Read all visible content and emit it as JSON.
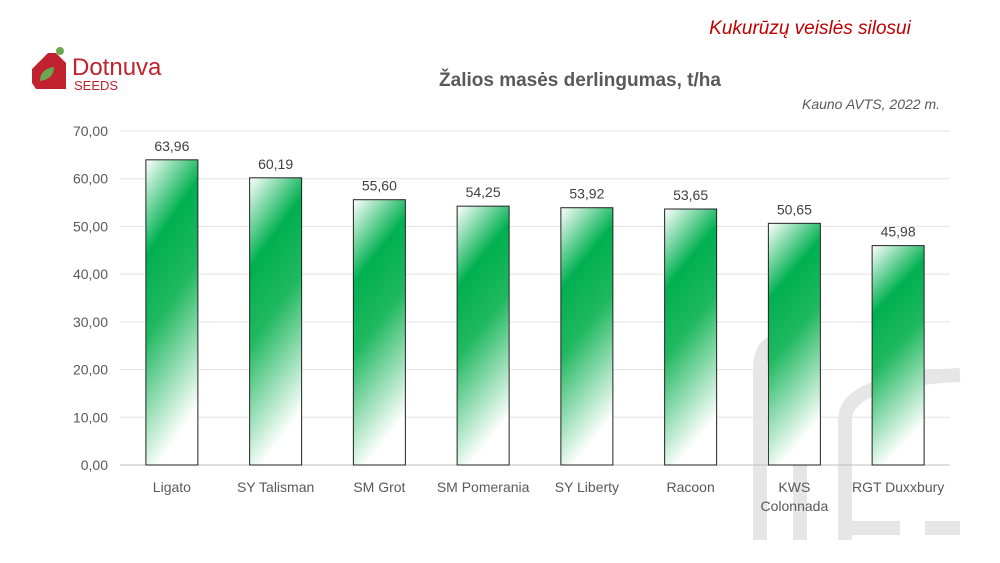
{
  "header": {
    "caption": "Kukurūzų veislės silosui",
    "logo_text": "Dotnuva",
    "logo_sub": "SEEDS"
  },
  "colors": {
    "bar": "#00b050",
    "caption": "#c00000",
    "logo": "#c0222f"
  },
  "chart_data": {
    "type": "bar",
    "title": "Žalios masės derlingumas, t/ha",
    "subtitle": "Kauno AVTS, 2022 m.",
    "categories": [
      "Ligato",
      "SY Talisman",
      "SM Grot",
      "SM Pomerania",
      "SY Liberty",
      "Racoon",
      "KWS Colonnada",
      "RGT Duxxbury"
    ],
    "category_lines": [
      [
        "Ligato"
      ],
      [
        "SY Talisman"
      ],
      [
        "SM Grot"
      ],
      [
        "SM Pomerania"
      ],
      [
        "SY Liberty"
      ],
      [
        "Racoon"
      ],
      [
        "KWS",
        "Colonnada"
      ],
      [
        "RGT Duxxbury"
      ]
    ],
    "values": [
      63.96,
      60.19,
      55.6,
      54.25,
      53.92,
      53.65,
      50.65,
      45.98
    ],
    "value_labels": [
      "63,96",
      "60,19",
      "55,60",
      "54,25",
      "53,92",
      "53,65",
      "50,65",
      "45,98"
    ],
    "ylim": [
      0,
      70
    ],
    "yticks": [
      0,
      10,
      20,
      30,
      40,
      50,
      60,
      70
    ],
    "ytick_labels": [
      "0,00",
      "10,00",
      "20,00",
      "30,00",
      "40,00",
      "50,00",
      "60,00",
      "70,00"
    ],
    "grid": true,
    "xlabel": "",
    "ylabel": ""
  }
}
